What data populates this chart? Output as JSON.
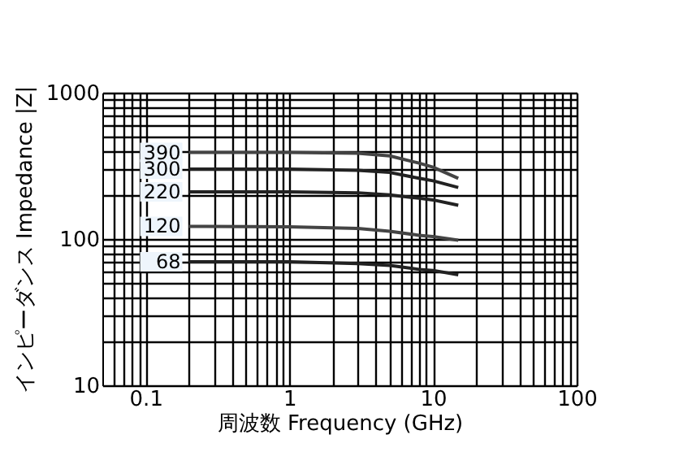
{
  "chart_data": {
    "type": "line",
    "xlabel": "周波数  Frequency (GHz)",
    "ylabel": "インピーダンス  Impedance |Z|",
    "log": "xy",
    "grid": true,
    "legend": false,
    "marker": "none",
    "line_style": "solid",
    "xlim": [
      0.05,
      100
    ],
    "ylim": [
      10,
      1000
    ],
    "xticks": [
      {
        "value": 0.06,
        "label": null
      },
      {
        "value": 0.07,
        "label": null
      },
      {
        "value": 0.08,
        "label": null
      },
      {
        "value": 0.09,
        "label": null
      },
      0.1,
      {
        "value": 0.2,
        "label": null
      },
      {
        "value": 0.3,
        "label": null
      },
      {
        "value": 0.4,
        "label": null
      },
      {
        "value": 0.5,
        "label": null
      },
      {
        "value": 0.6,
        "label": null
      },
      {
        "value": 0.7,
        "label": null
      },
      {
        "value": 0.8,
        "label": null
      },
      {
        "value": 0.9,
        "label": null
      },
      1,
      {
        "value": 2,
        "label": null
      },
      {
        "value": 3,
        "label": null
      },
      {
        "value": 4,
        "label": null
      },
      {
        "value": 5,
        "label": null
      },
      {
        "value": 6,
        "label": null
      },
      {
        "value": 7,
        "label": null
      },
      {
        "value": 8,
        "label": null
      },
      {
        "value": 9,
        "label": null
      },
      10,
      {
        "value": 20,
        "label": null
      },
      {
        "value": 30,
        "label": null
      },
      {
        "value": 40,
        "label": null
      },
      {
        "value": 50,
        "label": null
      },
      {
        "value": 60,
        "label": null
      },
      {
        "value": 70,
        "label": null
      },
      {
        "value": 80,
        "label": null
      },
      {
        "value": 90,
        "label": null
      },
      100
    ],
    "yticks": [
      10,
      {
        "value": 20,
        "label": null
      },
      {
        "value": 30,
        "label": null
      },
      {
        "value": 40,
        "label": null
      },
      {
        "value": 50,
        "label": null
      },
      {
        "value": 60,
        "label": null
      },
      {
        "value": 70,
        "label": null
      },
      {
        "value": 80,
        "label": null
      },
      {
        "value": 90,
        "label": null
      },
      100,
      {
        "value": 200,
        "label": null
      },
      {
        "value": 300,
        "label": null
      },
      {
        "value": 400,
        "label": null
      },
      {
        "value": 500,
        "label": null
      },
      {
        "value": 600,
        "label": null
      },
      {
        "value": 700,
        "label": null
      },
      {
        "value": 800,
        "label": null
      },
      {
        "value": 900,
        "label": null
      },
      1000
    ],
    "x": [
      0.2,
      1,
      3,
      5,
      8,
      10,
      15
    ],
    "series": [
      {
        "name": "390",
        "color": "#444444",
        "values": [
          390,
          390,
          385,
          370,
          330,
          310,
          260
        ]
      },
      {
        "name": "300",
        "color": "#222222",
        "values": [
          300,
          300,
          295,
          285,
          260,
          250,
          225
        ]
      },
      {
        "name": "220",
        "color": "#222222",
        "values": [
          210,
          210,
          207,
          200,
          190,
          185,
          170
        ]
      },
      {
        "name": "120",
        "color": "#444444",
        "values": [
          122,
          121,
          118,
          113,
          106,
          104,
          98
        ]
      },
      {
        "name": "68",
        "color": "#222222",
        "values": [
          70,
          70,
          68,
          66,
          62,
          61,
          57
        ]
      }
    ]
  }
}
